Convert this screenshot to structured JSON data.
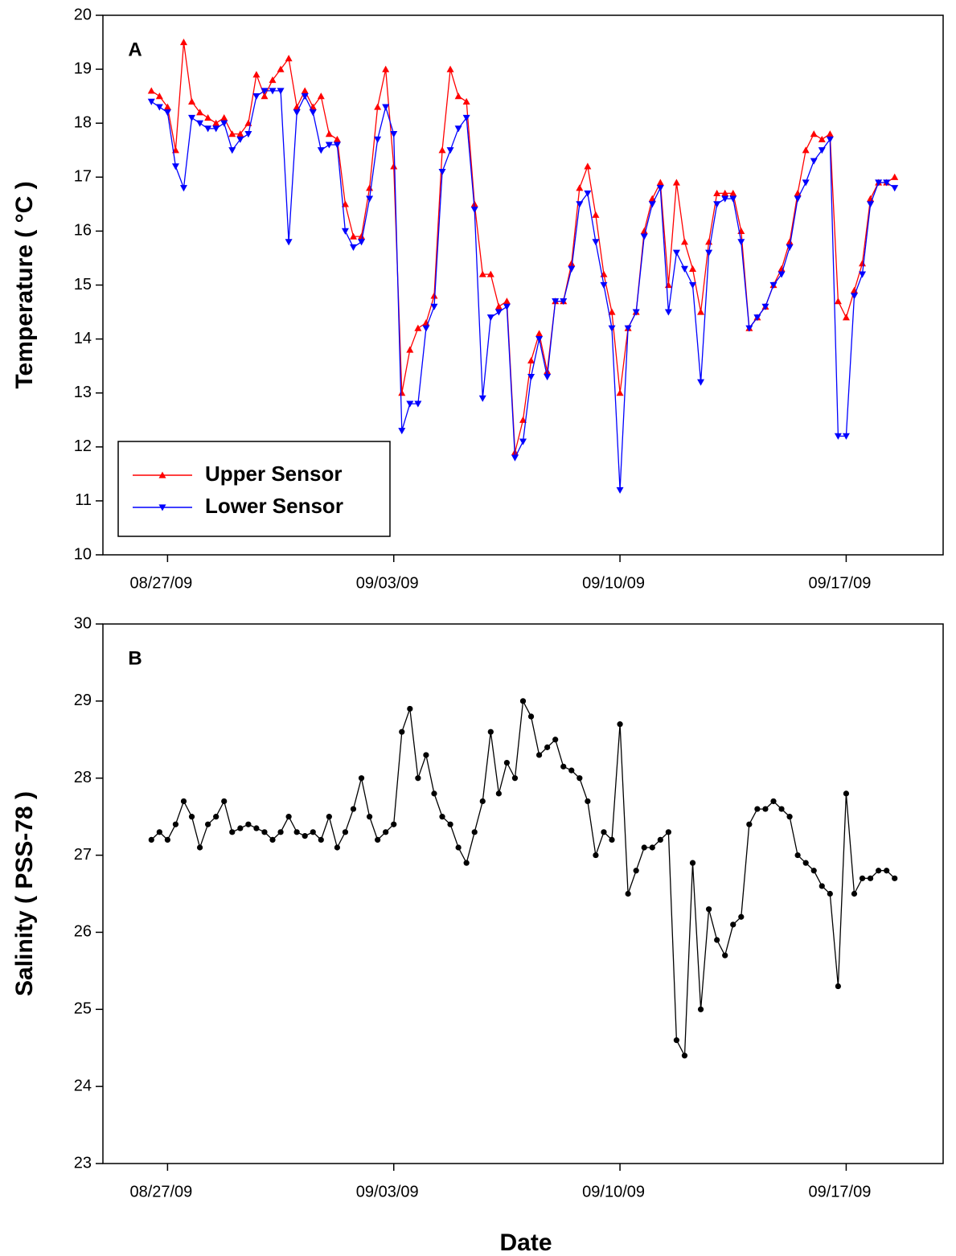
{
  "chart_data": [
    {
      "type": "line",
      "annotation": "A",
      "ylabel": "Temperature ( °C )",
      "x": [
        "2009-08-26 12:00",
        "2009-08-26 18:00",
        "2009-08-27 00:00",
        "2009-08-27 06:00",
        "2009-08-27 12:00",
        "2009-08-27 18:00",
        "2009-08-28 00:00",
        "2009-08-28 06:00",
        "2009-08-28 12:00",
        "2009-08-28 18:00",
        "2009-08-29 00:00",
        "2009-08-29 06:00",
        "2009-08-29 12:00",
        "2009-08-29 18:00",
        "2009-08-30 00:00",
        "2009-08-30 06:00",
        "2009-08-30 12:00",
        "2009-08-30 18:00",
        "2009-08-31 00:00",
        "2009-08-31 06:00",
        "2009-08-31 12:00",
        "2009-08-31 18:00",
        "2009-09-01 00:00",
        "2009-09-01 06:00",
        "2009-09-01 12:00",
        "2009-09-01 18:00",
        "2009-09-02 00:00",
        "2009-09-02 06:00",
        "2009-09-02 12:00",
        "2009-09-02 18:00",
        "2009-09-03 00:00",
        "2009-09-03 06:00",
        "2009-09-03 12:00",
        "2009-09-03 18:00",
        "2009-09-04 00:00",
        "2009-09-04 06:00",
        "2009-09-04 12:00",
        "2009-09-04 18:00",
        "2009-09-05 00:00",
        "2009-09-05 06:00",
        "2009-09-05 12:00",
        "2009-09-05 18:00",
        "2009-09-06 00:00",
        "2009-09-06 06:00",
        "2009-09-06 12:00",
        "2009-09-06 18:00",
        "2009-09-07 00:00",
        "2009-09-07 06:00",
        "2009-09-07 12:00",
        "2009-09-07 18:00",
        "2009-09-08 00:00",
        "2009-09-08 06:00",
        "2009-09-08 12:00",
        "2009-09-08 18:00",
        "2009-09-09 00:00",
        "2009-09-09 06:00",
        "2009-09-09 12:00",
        "2009-09-09 18:00",
        "2009-09-10 00:00",
        "2009-09-10 06:00",
        "2009-09-10 12:00",
        "2009-09-10 18:00",
        "2009-09-11 00:00",
        "2009-09-11 06:00",
        "2009-09-11 12:00",
        "2009-09-11 18:00",
        "2009-09-12 00:00",
        "2009-09-12 06:00",
        "2009-09-12 12:00",
        "2009-09-12 18:00",
        "2009-09-13 00:00",
        "2009-09-13 06:00",
        "2009-09-13 12:00",
        "2009-09-13 18:00",
        "2009-09-14 00:00",
        "2009-09-14 06:00",
        "2009-09-14 12:00",
        "2009-09-14 18:00",
        "2009-09-15 00:00",
        "2009-09-15 06:00",
        "2009-09-15 12:00",
        "2009-09-15 18:00",
        "2009-09-16 00:00",
        "2009-09-16 06:00",
        "2009-09-16 12:00",
        "2009-09-16 18:00",
        "2009-09-17 00:00",
        "2009-09-17 06:00",
        "2009-09-17 12:00",
        "2009-09-17 18:00",
        "2009-09-18 00:00",
        "2009-09-18 06:00",
        "2009-09-18 12:00"
      ],
      "series": [
        {
          "name": "Upper Sensor",
          "color": "#ff0000",
          "marker": "triangle-up",
          "values": [
            18.6,
            18.5,
            18.3,
            17.5,
            19.5,
            18.4,
            18.2,
            18.1,
            18.0,
            18.1,
            17.8,
            17.8,
            18.0,
            18.9,
            18.5,
            18.8,
            19.0,
            19.2,
            18.3,
            18.6,
            18.3,
            18.5,
            17.8,
            17.7,
            16.5,
            15.9,
            15.9,
            16.8,
            18.3,
            19.0,
            17.2,
            13.0,
            13.8,
            14.2,
            14.3,
            14.8,
            17.5,
            19.0,
            18.5,
            18.4,
            16.5,
            15.2,
            15.2,
            14.6,
            14.7,
            11.9,
            12.5,
            13.6,
            14.1,
            13.4,
            14.7,
            14.7,
            15.4,
            16.8,
            17.2,
            16.3,
            15.2,
            14.5,
            13.0,
            14.2,
            14.5,
            16.0,
            16.6,
            16.9,
            15.0,
            16.9,
            15.8,
            15.3,
            14.5,
            15.8,
            16.7,
            16.7,
            16.7,
            16.0,
            14.2,
            14.4,
            14.6,
            15.0,
            15.3,
            15.8,
            16.7,
            17.5,
            17.8,
            17.7,
            17.8,
            14.7,
            14.4,
            14.9,
            15.4,
            16.6,
            16.9,
            16.9,
            17.0
          ]
        },
        {
          "name": "Lower Sensor",
          "color": "#0000ff",
          "marker": "triangle-down",
          "values": [
            18.4,
            18.3,
            18.2,
            17.2,
            16.8,
            18.1,
            18.0,
            17.9,
            17.9,
            18.0,
            17.5,
            17.7,
            17.8,
            18.5,
            18.6,
            18.6,
            18.6,
            15.8,
            18.2,
            18.5,
            18.2,
            17.5,
            17.6,
            17.6,
            16.0,
            15.7,
            15.8,
            16.6,
            17.7,
            18.3,
            17.8,
            12.3,
            12.8,
            12.8,
            14.2,
            14.6,
            17.1,
            17.5,
            17.9,
            18.1,
            16.4,
            12.9,
            14.4,
            14.5,
            14.6,
            11.8,
            12.1,
            13.3,
            14.0,
            13.3,
            14.7,
            14.7,
            15.3,
            16.5,
            16.7,
            15.8,
            15.0,
            14.2,
            11.2,
            14.2,
            14.5,
            15.9,
            16.5,
            16.8,
            14.5,
            15.6,
            15.3,
            15.0,
            13.2,
            15.6,
            16.5,
            16.6,
            16.6,
            15.8,
            14.2,
            14.4,
            14.6,
            15.0,
            15.2,
            15.7,
            16.6,
            16.9,
            17.3,
            17.5,
            17.7,
            12.2,
            12.2,
            14.8,
            15.2,
            16.5,
            16.9,
            16.9,
            16.8
          ]
        }
      ],
      "xlim": [
        "2009-08-25",
        "2009-09-20"
      ],
      "xticks": [
        {
          "value": "2009-08-27",
          "label": "08/27/09"
        },
        {
          "value": "2009-09-03",
          "label": "09/03/09"
        },
        {
          "value": "2009-09-10",
          "label": "09/10/09"
        },
        {
          "value": "2009-09-17",
          "label": "09/17/09"
        }
      ],
      "ylim": [
        10,
        20
      ],
      "yticks": [
        10,
        11,
        12,
        13,
        14,
        15,
        16,
        17,
        18,
        19,
        20
      ],
      "legend": "lower-left"
    },
    {
      "type": "line",
      "annotation": "B",
      "ylabel": "Salinity ( PSS-78 )",
      "xlabel": "Date",
      "x": [
        "2009-08-26 12:00",
        "2009-08-26 18:00",
        "2009-08-27 00:00",
        "2009-08-27 06:00",
        "2009-08-27 12:00",
        "2009-08-27 18:00",
        "2009-08-28 00:00",
        "2009-08-28 06:00",
        "2009-08-28 12:00",
        "2009-08-28 18:00",
        "2009-08-29 00:00",
        "2009-08-29 06:00",
        "2009-08-29 12:00",
        "2009-08-29 18:00",
        "2009-08-30 00:00",
        "2009-08-30 06:00",
        "2009-08-30 12:00",
        "2009-08-30 18:00",
        "2009-08-31 00:00",
        "2009-08-31 06:00",
        "2009-08-31 12:00",
        "2009-08-31 18:00",
        "2009-09-01 00:00",
        "2009-09-01 06:00",
        "2009-09-01 12:00",
        "2009-09-01 18:00",
        "2009-09-02 00:00",
        "2009-09-02 06:00",
        "2009-09-02 12:00",
        "2009-09-02 18:00",
        "2009-09-03 00:00",
        "2009-09-03 06:00",
        "2009-09-03 12:00",
        "2009-09-03 18:00",
        "2009-09-04 00:00",
        "2009-09-04 06:00",
        "2009-09-04 12:00",
        "2009-09-04 18:00",
        "2009-09-05 00:00",
        "2009-09-05 06:00",
        "2009-09-05 12:00",
        "2009-09-05 18:00",
        "2009-09-06 00:00",
        "2009-09-06 06:00",
        "2009-09-06 12:00",
        "2009-09-06 18:00",
        "2009-09-07 00:00",
        "2009-09-07 06:00",
        "2009-09-07 12:00",
        "2009-09-07 18:00",
        "2009-09-08 00:00",
        "2009-09-08 06:00",
        "2009-09-08 12:00",
        "2009-09-08 18:00",
        "2009-09-09 00:00",
        "2009-09-09 06:00",
        "2009-09-09 12:00",
        "2009-09-09 18:00",
        "2009-09-10 00:00",
        "2009-09-10 06:00",
        "2009-09-10 12:00",
        "2009-09-10 18:00",
        "2009-09-11 00:00",
        "2009-09-11 06:00",
        "2009-09-11 12:00",
        "2009-09-11 18:00",
        "2009-09-12 00:00",
        "2009-09-12 06:00",
        "2009-09-12 12:00",
        "2009-09-12 18:00",
        "2009-09-13 00:00",
        "2009-09-13 06:00",
        "2009-09-13 12:00",
        "2009-09-13 18:00",
        "2009-09-14 00:00",
        "2009-09-14 06:00",
        "2009-09-14 12:00",
        "2009-09-14 18:00",
        "2009-09-15 00:00",
        "2009-09-15 06:00",
        "2009-09-15 12:00",
        "2009-09-15 18:00",
        "2009-09-16 00:00",
        "2009-09-16 06:00",
        "2009-09-16 12:00",
        "2009-09-16 18:00",
        "2009-09-17 00:00",
        "2009-09-17 06:00",
        "2009-09-17 12:00",
        "2009-09-17 18:00",
        "2009-09-18 00:00",
        "2009-09-18 06:00",
        "2009-09-18 12:00"
      ],
      "series": [
        {
          "color": "#000000",
          "marker": "circle",
          "values": [
            27.2,
            27.3,
            27.2,
            27.4,
            27.7,
            27.5,
            27.1,
            27.4,
            27.5,
            27.7,
            27.3,
            27.35,
            27.4,
            27.35,
            27.3,
            27.2,
            27.3,
            27.5,
            27.3,
            27.25,
            27.3,
            27.2,
            27.5,
            27.1,
            27.3,
            27.6,
            28.0,
            27.5,
            27.2,
            27.3,
            27.4,
            28.6,
            28.9,
            28.0,
            28.3,
            27.8,
            27.5,
            27.4,
            27.1,
            26.9,
            27.3,
            27.7,
            28.6,
            27.8,
            28.2,
            28.0,
            29.0,
            28.8,
            28.3,
            28.4,
            28.5,
            28.15,
            28.1,
            28.0,
            27.7,
            27.0,
            27.3,
            27.2,
            28.7,
            26.5,
            26.8,
            27.1,
            27.1,
            27.2,
            27.3,
            24.6,
            24.4,
            26.9,
            25.0,
            26.3,
            25.9,
            25.7,
            26.1,
            26.2,
            27.4,
            27.6,
            27.6,
            27.7,
            27.6,
            27.5,
            27.0,
            26.9,
            26.8,
            26.6,
            26.5,
            25.3,
            27.8,
            26.5,
            26.7,
            26.7,
            26.8,
            26.8,
            26.7
          ]
        }
      ],
      "xlim": [
        "2009-08-25",
        "2009-09-20"
      ],
      "xticks": [
        {
          "value": "2009-08-27",
          "label": "08/27/09"
        },
        {
          "value": "2009-09-03",
          "label": "09/03/09"
        },
        {
          "value": "2009-09-10",
          "label": "09/10/09"
        },
        {
          "value": "2009-09-17",
          "label": "09/17/09"
        }
      ],
      "ylim": [
        23,
        30
      ],
      "yticks": [
        23,
        24,
        25,
        26,
        27,
        28,
        29,
        30
      ]
    }
  ]
}
